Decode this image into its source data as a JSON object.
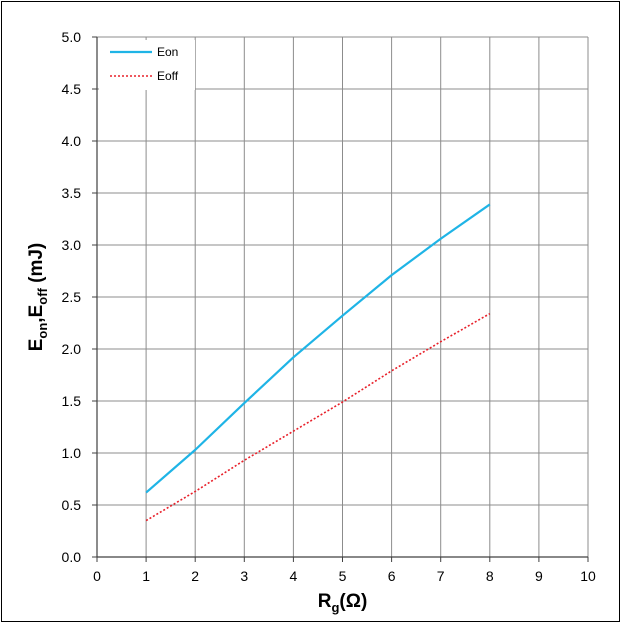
{
  "chart_data": {
    "type": "line",
    "title": "",
    "xlabel": {
      "main": "R",
      "sub": "g",
      "suffix": "(Ω)"
    },
    "ylabel": {
      "part1": "E",
      "sub1": "on",
      "sep": ",E",
      "sub2": "off",
      "suffix": " (mJ)"
    },
    "xlim": [
      0,
      10
    ],
    "ylim": [
      0,
      5
    ],
    "xticks": [
      0,
      1,
      2,
      3,
      4,
      5,
      6,
      7,
      8,
      9,
      10
    ],
    "xtick_labels": [
      "0",
      "1",
      "2",
      "3",
      "4",
      "5",
      "6",
      "7",
      "8",
      "9",
      "10"
    ],
    "yticks": [
      0,
      0.5,
      1,
      1.5,
      2,
      2.5,
      3,
      3.5,
      4,
      4.5,
      5
    ],
    "ytick_labels": [
      "0.0",
      "0.5",
      "1.0",
      "1.5",
      "2.0",
      "2.5",
      "3.0",
      "3.5",
      "4.0",
      "4.5",
      "5.0"
    ],
    "grid": true,
    "legend_position": "top-left",
    "series": [
      {
        "name": "Eon",
        "color": "#1FB4E6",
        "style": "solid",
        "x": [
          1,
          2,
          3,
          4,
          5,
          6,
          7,
          8
        ],
        "y": [
          0.62,
          1.03,
          1.48,
          1.92,
          2.32,
          2.71,
          3.06,
          3.39
        ]
      },
      {
        "name": "Eoff",
        "color": "#E8202A",
        "style": "dotted",
        "x": [
          1,
          2,
          3,
          4,
          5,
          6,
          7,
          8
        ],
        "y": [
          0.35,
          0.63,
          0.93,
          1.21,
          1.49,
          1.79,
          2.07,
          2.34
        ]
      }
    ]
  }
}
